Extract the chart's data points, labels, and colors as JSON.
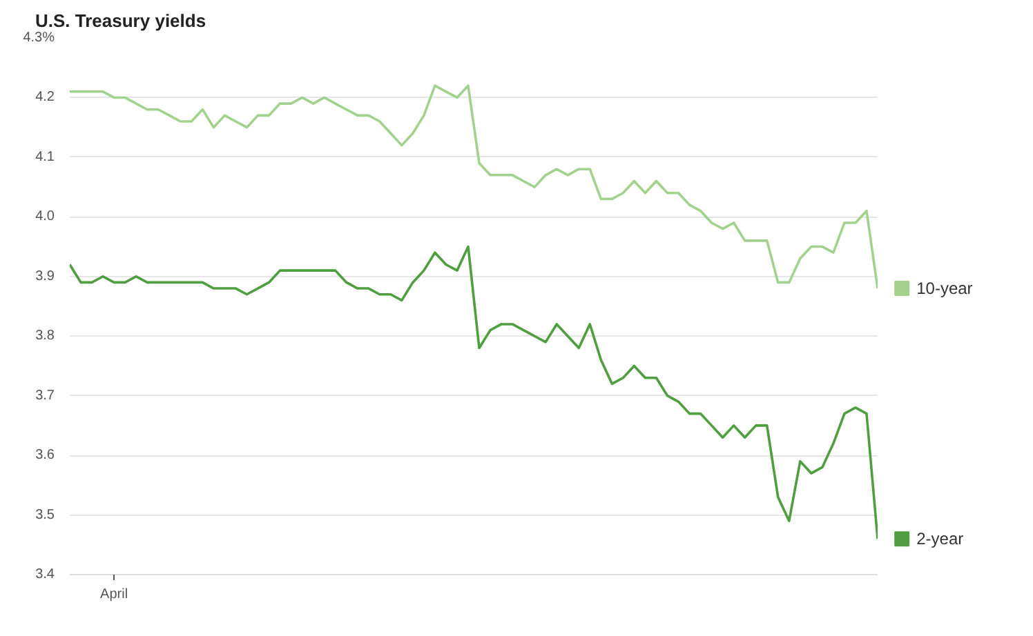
{
  "chart_data": {
    "type": "line",
    "title": "U.S. Treasury yields",
    "categories": [
      null,
      null,
      null,
      null,
      "April",
      null,
      null,
      null,
      null,
      null,
      null,
      null,
      null,
      null,
      null,
      null,
      null,
      null,
      null,
      null,
      null,
      null,
      null,
      null,
      null,
      null,
      null,
      null,
      null,
      null,
      null,
      null,
      null,
      null,
      null,
      null,
      null,
      null,
      null,
      null,
      null,
      null,
      null,
      null,
      null,
      null,
      null,
      null,
      null,
      null,
      null,
      null,
      null,
      null,
      null,
      null,
      null,
      null,
      null,
      null,
      null,
      null,
      null,
      null,
      null,
      null,
      null,
      null,
      null,
      null,
      null,
      null,
      null,
      null
    ],
    "series": [
      {
        "name": "10-year",
        "color": "#a3d28f",
        "values": [
          4.21,
          4.21,
          4.21,
          4.21,
          4.2,
          4.2,
          4.19,
          4.18,
          4.18,
          4.17,
          4.16,
          4.16,
          4.18,
          4.15,
          4.17,
          4.16,
          4.15,
          4.17,
          4.17,
          4.19,
          4.19,
          4.2,
          4.19,
          4.2,
          4.19,
          4.18,
          4.17,
          4.17,
          4.16,
          4.14,
          4.12,
          4.14,
          4.17,
          4.22,
          4.21,
          4.2,
          4.22,
          4.09,
          4.07,
          4.07,
          4.07,
          4.06,
          4.05,
          4.07,
          4.08,
          4.07,
          4.08,
          4.08,
          4.03,
          4.03,
          4.04,
          4.06,
          4.04,
          4.06,
          4.04,
          4.04,
          4.02,
          4.01,
          3.99,
          3.98,
          3.99,
          3.96,
          3.96,
          3.96,
          3.89,
          3.89,
          3.93,
          3.95,
          3.95,
          3.94,
          3.99,
          3.99,
          4.01,
          3.88
        ]
      },
      {
        "name": "2-year",
        "color": "#4f9e3f",
        "values": [
          3.92,
          3.89,
          3.89,
          3.9,
          3.89,
          3.89,
          3.9,
          3.89,
          3.89,
          3.89,
          3.89,
          3.89,
          3.89,
          3.88,
          3.88,
          3.88,
          3.87,
          3.88,
          3.89,
          3.91,
          3.91,
          3.91,
          3.91,
          3.91,
          3.91,
          3.89,
          3.88,
          3.88,
          3.87,
          3.87,
          3.86,
          3.89,
          3.91,
          3.94,
          3.92,
          3.91,
          3.95,
          3.78,
          3.81,
          3.82,
          3.82,
          3.81,
          3.8,
          3.79,
          3.82,
          3.8,
          3.78,
          3.82,
          3.76,
          3.72,
          3.73,
          3.75,
          3.73,
          3.73,
          3.7,
          3.69,
          3.67,
          3.67,
          3.65,
          3.63,
          3.65,
          3.63,
          3.65,
          3.65,
          3.53,
          3.49,
          3.59,
          3.57,
          3.58,
          3.62,
          3.67,
          3.68,
          3.67,
          3.46
        ]
      }
    ],
    "ylim": [
      3.4,
      4.3
    ],
    "yticks": [
      3.4,
      3.5,
      3.6,
      3.7,
      3.8,
      3.9,
      {
        "value": 4.0,
        "label": "4.0"
      },
      4.1,
      4.2,
      {
        "value": 4.3,
        "label": "4.3%"
      }
    ],
    "grid": "y",
    "legend": "right",
    "marker": "none",
    "line_style": "solid"
  }
}
